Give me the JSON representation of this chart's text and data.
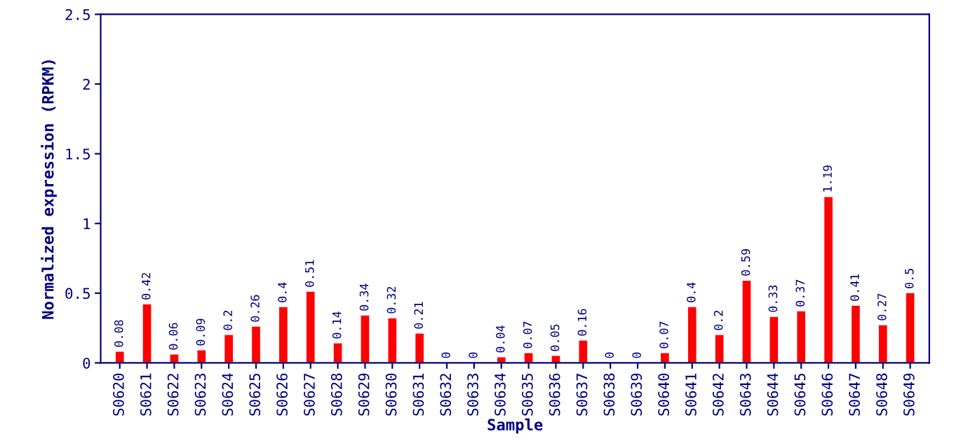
{
  "chart_data": {
    "type": "bar",
    "xlabel": "Sample",
    "ylabel": "Normalized expression (RPKM)",
    "categories": [
      "S0620",
      "S0621",
      "S0622",
      "S0623",
      "S0624",
      "S0625",
      "S0626",
      "S0627",
      "S0628",
      "S0629",
      "S0630",
      "S0631",
      "S0632",
      "S0633",
      "S0634",
      "S0635",
      "S0636",
      "S0637",
      "S0638",
      "S0639",
      "S0640",
      "S0641",
      "S0642",
      "S0643",
      "S0644",
      "S0645",
      "S0646",
      "S0647",
      "S0648",
      "S0649"
    ],
    "values": [
      0.08,
      0.42,
      0.06,
      0.09,
      0.2,
      0.26,
      0.4,
      0.51,
      0.14,
      0.34,
      0.32,
      0.21,
      0,
      0,
      0.04,
      0.07,
      0.05,
      0.16,
      0,
      0,
      0.07,
      0.4,
      0.2,
      0.59,
      0.33,
      0.37,
      1.19,
      0.41,
      0.27,
      0.5
    ],
    "color": "#ff0000",
    "ylim": [
      0,
      2.5
    ],
    "yticks": [
      0,
      0.5,
      1,
      1.5,
      2,
      2.5
    ],
    "grid": false,
    "data_labels": true
  }
}
